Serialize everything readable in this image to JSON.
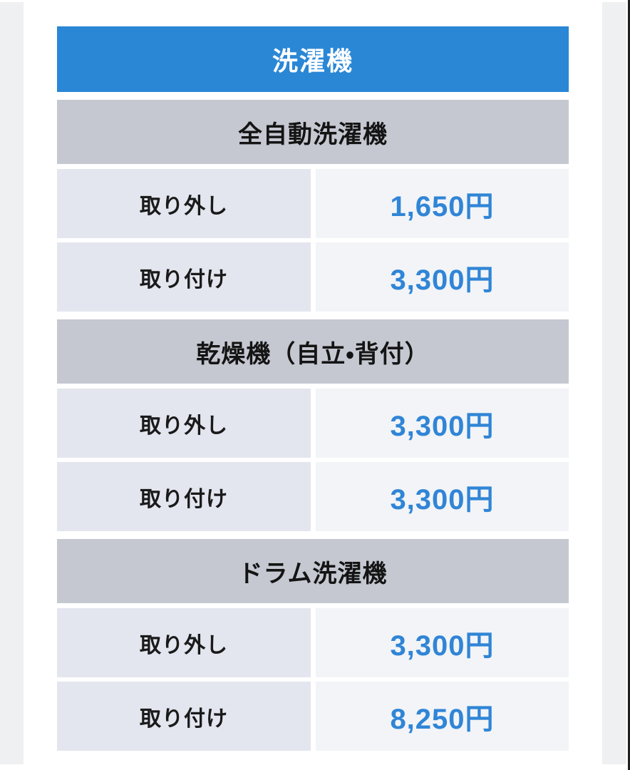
{
  "table": {
    "title": "洗濯機",
    "sections": [
      {
        "name": "全自動洗濯機",
        "rows": [
          {
            "label": "取り外し",
            "price": "1,650円"
          },
          {
            "label": "取り付け",
            "price": "3,300円"
          }
        ]
      },
      {
        "name": "乾燥機（自立・背付）",
        "rows": [
          {
            "label": "取り外し",
            "price": "3,300円"
          },
          {
            "label": "取り付け",
            "price": "3,300円"
          }
        ]
      },
      {
        "name": "ドラム洗濯機",
        "rows": [
          {
            "label": "取り外し",
            "price": "3,300円"
          },
          {
            "label": "取り付け",
            "price": "8,250円"
          }
        ]
      }
    ]
  },
  "colors": {
    "title_bg": "#2a87d6",
    "title_text": "#ffffff",
    "section_header_bg": "#c5c8d1",
    "label_cell_bg": "#e3e6ef",
    "price_cell_bg": "#f2f4f7",
    "price_text": "#3085d6",
    "label_text": "#1a1a1a",
    "page_edge_strip": "#eff0f2",
    "page_edge_line": "#1f1f1f"
  }
}
